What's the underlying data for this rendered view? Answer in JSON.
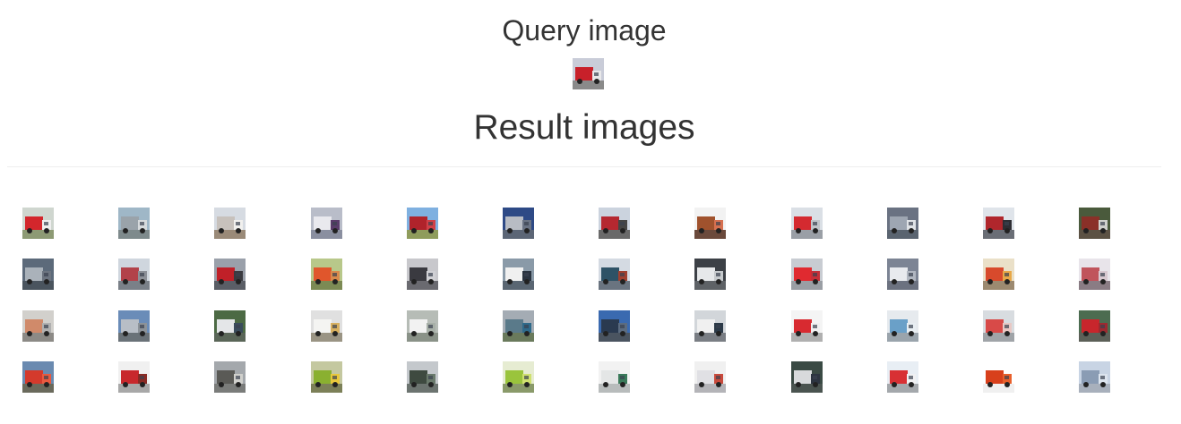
{
  "header": {
    "query_title": "Query image",
    "results_title": "Result images"
  },
  "query_image": {
    "icon": "fire-truck-thumbnail",
    "sky": "#c9ccd8",
    "body": "#c8202a",
    "cab": "#e8e8ea",
    "ground": "#8a8a8a"
  },
  "results": {
    "columns": 12,
    "images": [
      {
        "sky": "#cfd6cf",
        "body": "#d3262c",
        "cab": "#eeeeee",
        "ground": "#8d9a74"
      },
      {
        "sky": "#9fb7c7",
        "body": "#9aa3aa",
        "cab": "#d6dadc",
        "ground": "#7e8a8c"
      },
      {
        "sky": "#d6dbe2",
        "body": "#c7c1bc",
        "cab": "#f1f0ee",
        "ground": "#9a8a78"
      },
      {
        "sky": "#b9bdc9",
        "body": "#e9e9ee",
        "cab": "#5a3c6a",
        "ground": "#8a8fa0"
      },
      {
        "sky": "#7fb0e0",
        "body": "#b0232b",
        "cab": "#d04048",
        "ground": "#8f9c5c"
      },
      {
        "sky": "#2e4a86",
        "body": "#b8bcc4",
        "cab": "#6a7384",
        "ground": "#5c6676"
      },
      {
        "sky": "#cbd3de",
        "body": "#b52830",
        "cab": "#454545",
        "ground": "#6a6a6a"
      },
      {
        "sky": "#f2f2f2",
        "body": "#a0522d",
        "cab": "#d67050",
        "ground": "#6b4a3c"
      },
      {
        "sky": "#dadfe5",
        "body": "#d42a30",
        "cab": "#c0c4ca",
        "ground": "#9a9fa6"
      },
      {
        "sky": "#6a7282",
        "body": "#9ea6b2",
        "cab": "#dfe2e6",
        "ground": "#5a6470"
      },
      {
        "sky": "#dfe4ea",
        "body": "#b0262c",
        "cab": "#2e2e34",
        "ground": "#6a6e76"
      },
      {
        "sky": "#4a5a3c",
        "body": "#8a3028",
        "cab": "#cfd0cc",
        "ground": "#5c5244"
      },
      {
        "sky": "#5c6a7a",
        "body": "#aab2ba",
        "cab": "#6c7480",
        "ground": "#4a545e"
      },
      {
        "sky": "#cfd6de",
        "body": "#b2424a",
        "cab": "#8c9098",
        "ground": "#7a8088"
      },
      {
        "sky": "#9aa0aa",
        "body": "#c02028",
        "cab": "#3a3a40",
        "ground": "#5a5e66"
      },
      {
        "sky": "#b8c88a",
        "body": "#e0562c",
        "cab": "#d88a4c",
        "ground": "#7c8a54"
      },
      {
        "sky": "#c8c8cc",
        "body": "#3a3a40",
        "cab": "#d0d0d4",
        "ground": "#6a6a70"
      },
      {
        "sky": "#8a9aa8",
        "body": "#f0f0f0",
        "cab": "#2a3440",
        "ground": "#5a6672"
      },
      {
        "sky": "#d4dae2",
        "body": "#2e5266",
        "cab": "#a04030",
        "ground": "#6a7480"
      },
      {
        "sky": "#3c4046",
        "body": "#e6e8ea",
        "cab": "#c6cacd",
        "ground": "#5e6266"
      },
      {
        "sky": "#c8ccd2",
        "body": "#e02a30",
        "cab": "#c63038",
        "ground": "#9a9ea4"
      },
      {
        "sky": "#7c8494",
        "body": "#e8eaee",
        "cab": "#b0b6c0",
        "ground": "#6c7280"
      },
      {
        "sky": "#eae0c8",
        "body": "#d84a2c",
        "cab": "#e8a848",
        "ground": "#9c8a70"
      },
      {
        "sky": "#e8e4ea",
        "body": "#c0545c",
        "cab": "#d8c8d0",
        "ground": "#8a7c84"
      },
      {
        "sky": "#d2d0cc",
        "body": "#d08a6a",
        "cab": "#b0b0b0",
        "ground": "#8c8a86"
      },
      {
        "sky": "#6a8cb8",
        "body": "#b8bec6",
        "cab": "#8c9298",
        "ground": "#6a7278"
      },
      {
        "sky": "#4c6a44",
        "body": "#e4e6e8",
        "cab": "#3a4c5c",
        "ground": "#5a6658"
      },
      {
        "sky": "#e0e0e0",
        "body": "#f4f4f2",
        "cab": "#d8b060",
        "ground": "#9a9484"
      },
      {
        "sky": "#b6bcb6",
        "body": "#f2f2f2",
        "cab": "#a8b0a8",
        "ground": "#8a9288"
      },
      {
        "sky": "#a4acb4",
        "body": "#5a7a8a",
        "cab": "#2e6a8a",
        "ground": "#6a7a5c"
      },
      {
        "sky": "#3a6ab0",
        "body": "#2a3a50",
        "cab": "#5c6c80",
        "ground": "#4a5460"
      },
      {
        "sky": "#d2d6da",
        "body": "#f0f0f0",
        "cab": "#2c3a48",
        "ground": "#7a7e84"
      },
      {
        "sky": "#f4f4f4",
        "body": "#d82a30",
        "cab": "#f0f0f0",
        "ground": "#b0b0b0"
      },
      {
        "sky": "#e6eaee",
        "body": "#6aa0c8",
        "cab": "#e8eef2",
        "ground": "#9aa4ac"
      },
      {
        "sky": "#d8dce0",
        "body": "#d84a48",
        "cab": "#e8c8c4",
        "ground": "#a0a4a8"
      },
      {
        "sky": "#4c6c50",
        "body": "#c8262c",
        "cab": "#9c2a30",
        "ground": "#5c6058"
      },
      {
        "sky": "#6a8ab0",
        "body": "#d43a2c",
        "cab": "#e85a40",
        "ground": "#6a6a5c"
      },
      {
        "sky": "#f0f0f0",
        "body": "#c8282c",
        "cab": "#8a2a24",
        "ground": "#a8a8a8"
      },
      {
        "sky": "#a4a8ac",
        "body": "#5a5a56",
        "cab": "#d0d0cc",
        "ground": "#7a7c7a"
      },
      {
        "sky": "#c4c8a0",
        "body": "#8ab030",
        "cab": "#e8c83c",
        "ground": "#7c8058"
      },
      {
        "sky": "#c4c8cc",
        "body": "#3e4a40",
        "cab": "#6a7a6c",
        "ground": "#6c7470"
      },
      {
        "sky": "#e6ecd2",
        "body": "#9ac43c",
        "cab": "#cfe070",
        "ground": "#8a9a6a"
      },
      {
        "sky": "#f2f2f2",
        "body": "#e4e6e6",
        "cab": "#3a7a5a",
        "ground": "#b8bcbc"
      },
      {
        "sky": "#f0f0f0",
        "body": "#e0e0e4",
        "cab": "#c84a3c",
        "ground": "#b4b4b8"
      },
      {
        "sky": "#3a4a44",
        "body": "#d8dadc",
        "cab": "#2c3440",
        "ground": "#4a5450"
      },
      {
        "sky": "#e8eef4",
        "body": "#d83034",
        "cab": "#f0f0f2",
        "ground": "#a4a8ac"
      },
      {
        "sky": "#ffffff",
        "body": "#d8401c",
        "cab": "#e8602c",
        "ground": "#f0f0f0"
      },
      {
        "sky": "#c8d4e4",
        "body": "#8a9cb4",
        "cab": "#dce4ee",
        "ground": "#a8b0bc"
      }
    ]
  }
}
